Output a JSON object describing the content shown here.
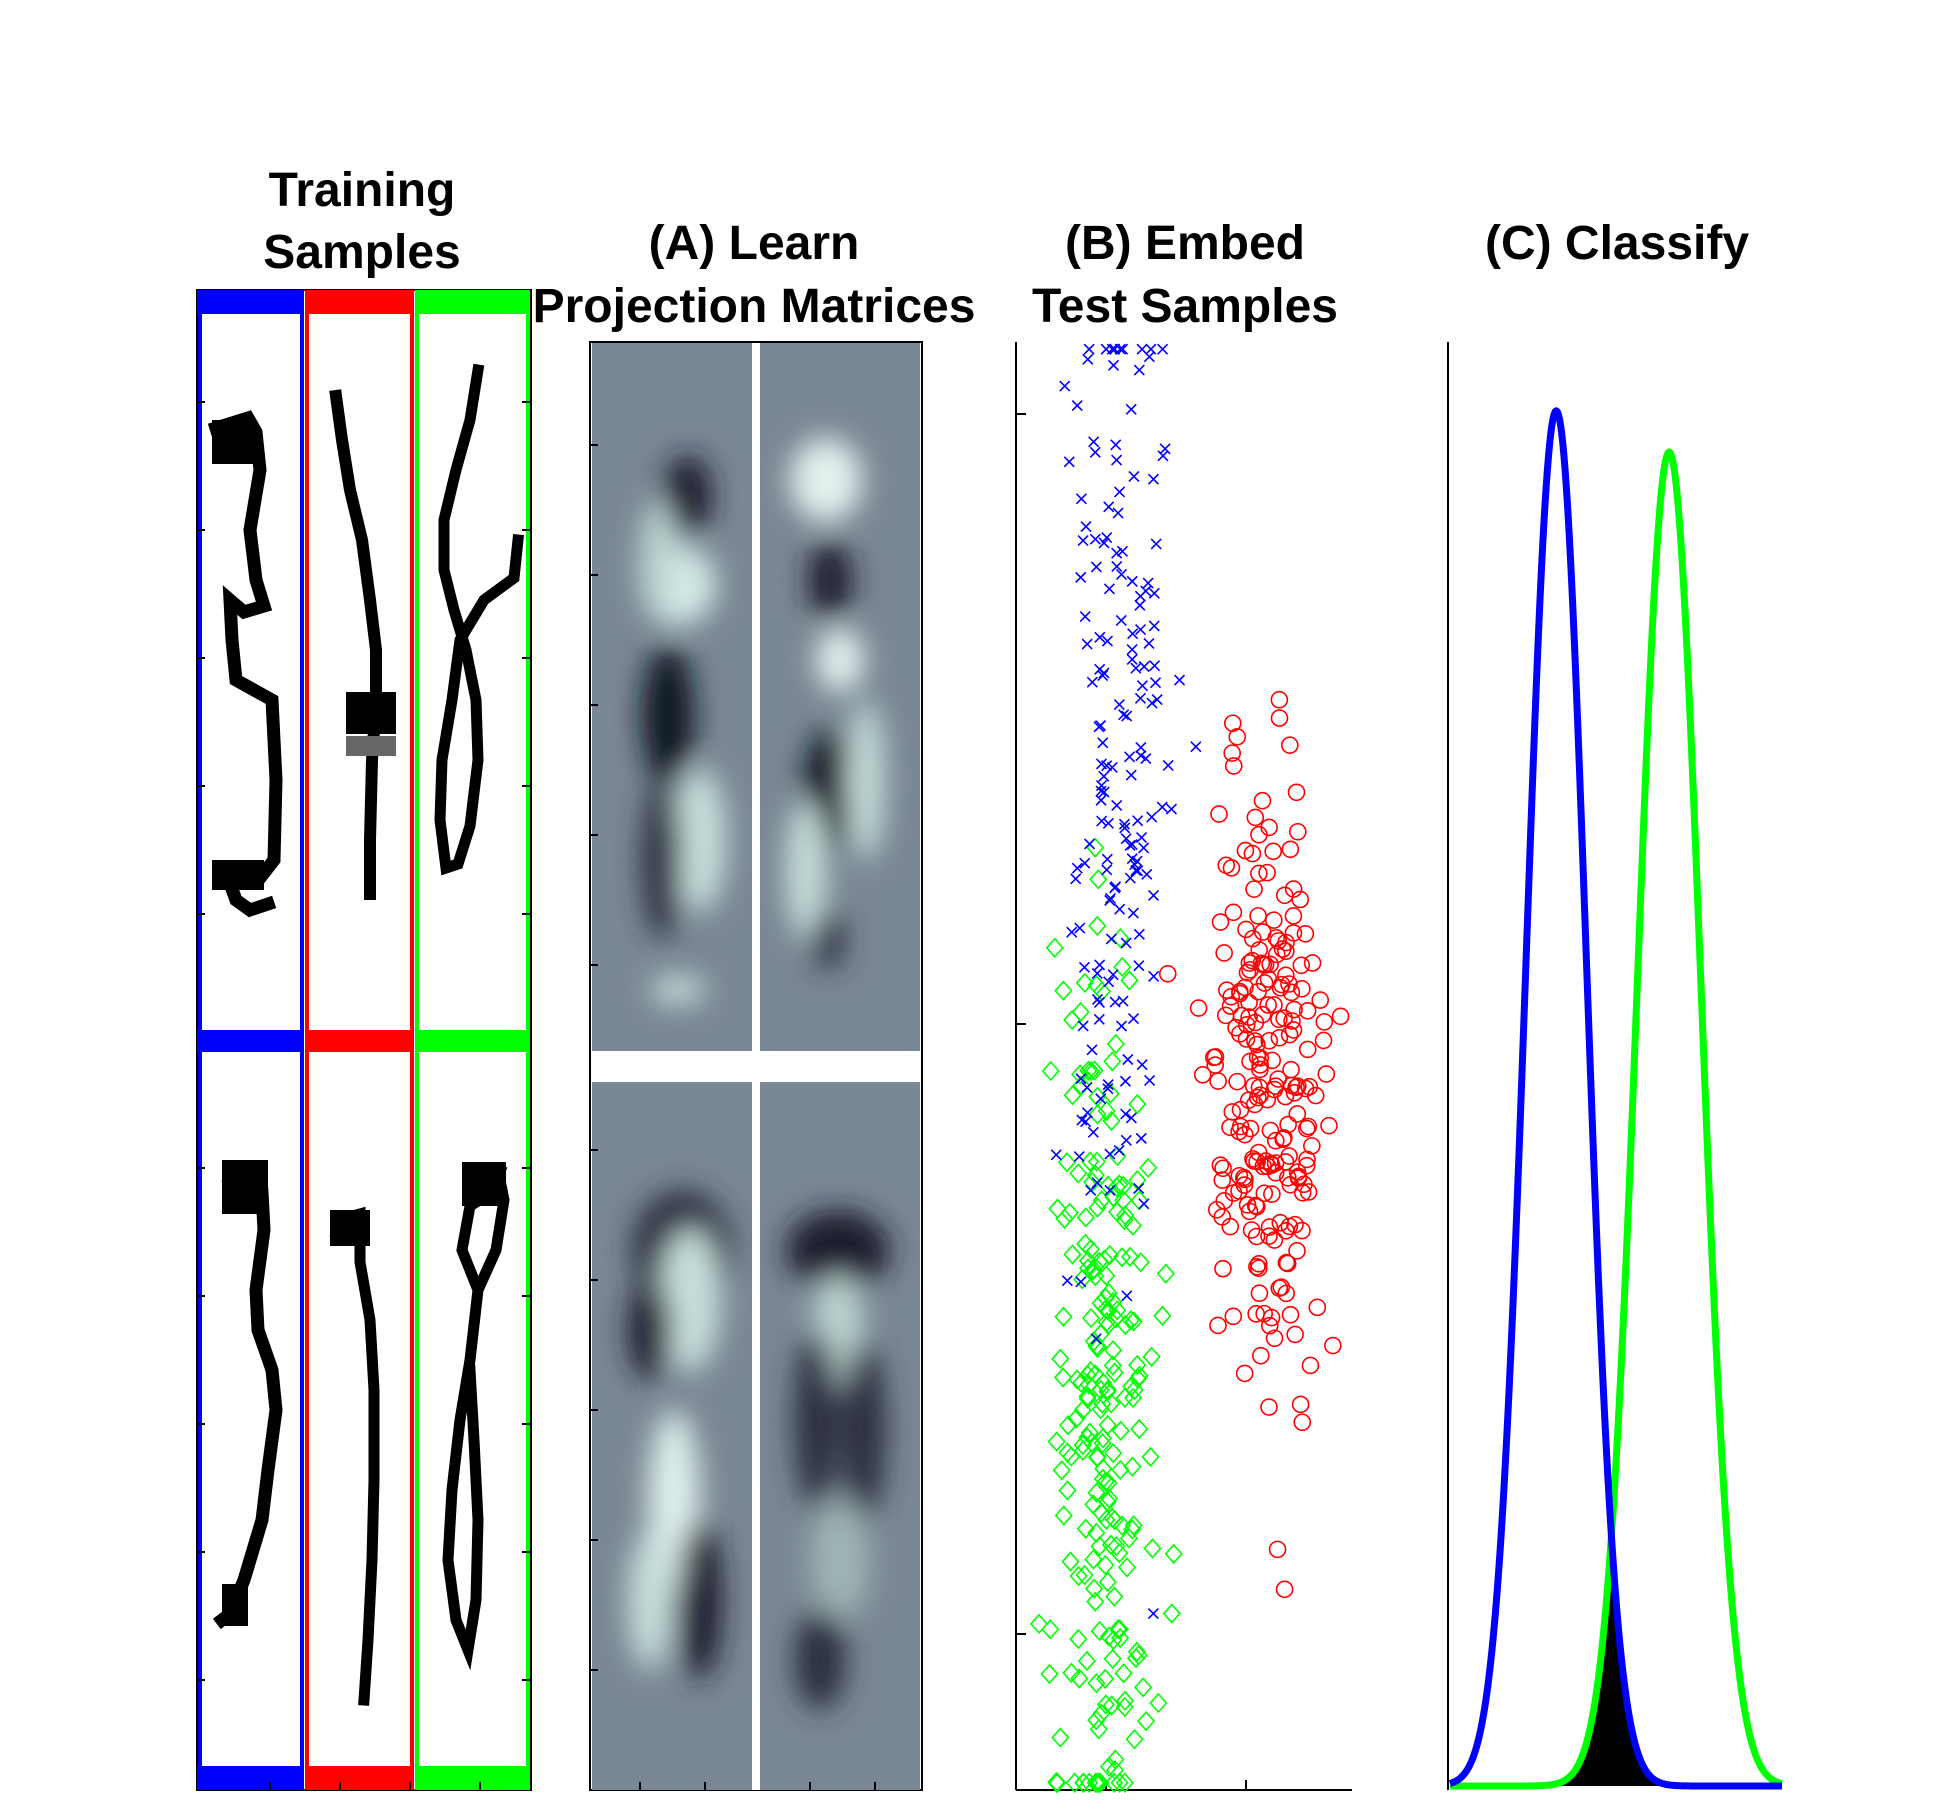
{
  "panels": {
    "training": {
      "title_lines": [
        "Training",
        "Samples"
      ]
    },
    "learn": {
      "title_lines": [
        "(A) Learn",
        "Projection Matrices"
      ]
    },
    "embed": {
      "title_lines": [
        "(B) Embed",
        "Test Samples"
      ]
    },
    "classify": {
      "title_lines": [
        "(C) Classify"
      ]
    }
  },
  "colors": {
    "class_blue": "#0000ff",
    "class_red": "#ff0000",
    "class_green": "#00ff00",
    "filter_bg": "#7a8794",
    "overlap_fill": "#000000"
  },
  "training_samples": {
    "columns": [
      "blue",
      "red",
      "green"
    ],
    "rows": 2,
    "glyphs": {
      "row1": [
        "digit-3",
        "digit-1",
        "digit-8"
      ],
      "row2": [
        "digit-3",
        "digit-1",
        "digit-8"
      ]
    }
  },
  "projection_matrices": {
    "grid": [
      2,
      2
    ]
  },
  "chart_data": [
    {
      "type": "scatter",
      "title": "(B) Embed Test Samples",
      "xlabel": "",
      "ylabel": "",
      "xlim": [
        0,
        10
      ],
      "ylim": [
        0,
        10
      ],
      "grid": false,
      "series": [
        {
          "marker": "x",
          "color": "#0000ff",
          "center": [
            2.9,
            7.3
          ],
          "spread": [
            0.75,
            1.9
          ],
          "count": 180
        },
        {
          "marker": "circle",
          "color": "#ff0000",
          "center": [
            7.4,
            4.9
          ],
          "spread": [
            0.85,
            1.05
          ],
          "count": 230
        },
        {
          "marker": "diamond",
          "color": "#00ff00",
          "center": [
            2.5,
            2.7
          ],
          "spread": [
            0.75,
            1.7
          ],
          "count": 230
        }
      ]
    },
    {
      "type": "line",
      "title": "(C) Classify",
      "xlabel": "",
      "ylabel": "",
      "xlim": [
        0,
        10
      ],
      "ylim": [
        0,
        1.05
      ],
      "series": [
        {
          "color": "#0000ff",
          "mean": 3.2,
          "std": 0.9,
          "peak": 1.0
        },
        {
          "color": "#00ff00",
          "mean": 6.6,
          "std": 0.95,
          "peak": 0.97
        }
      ],
      "overlap_shaded": true
    }
  ]
}
